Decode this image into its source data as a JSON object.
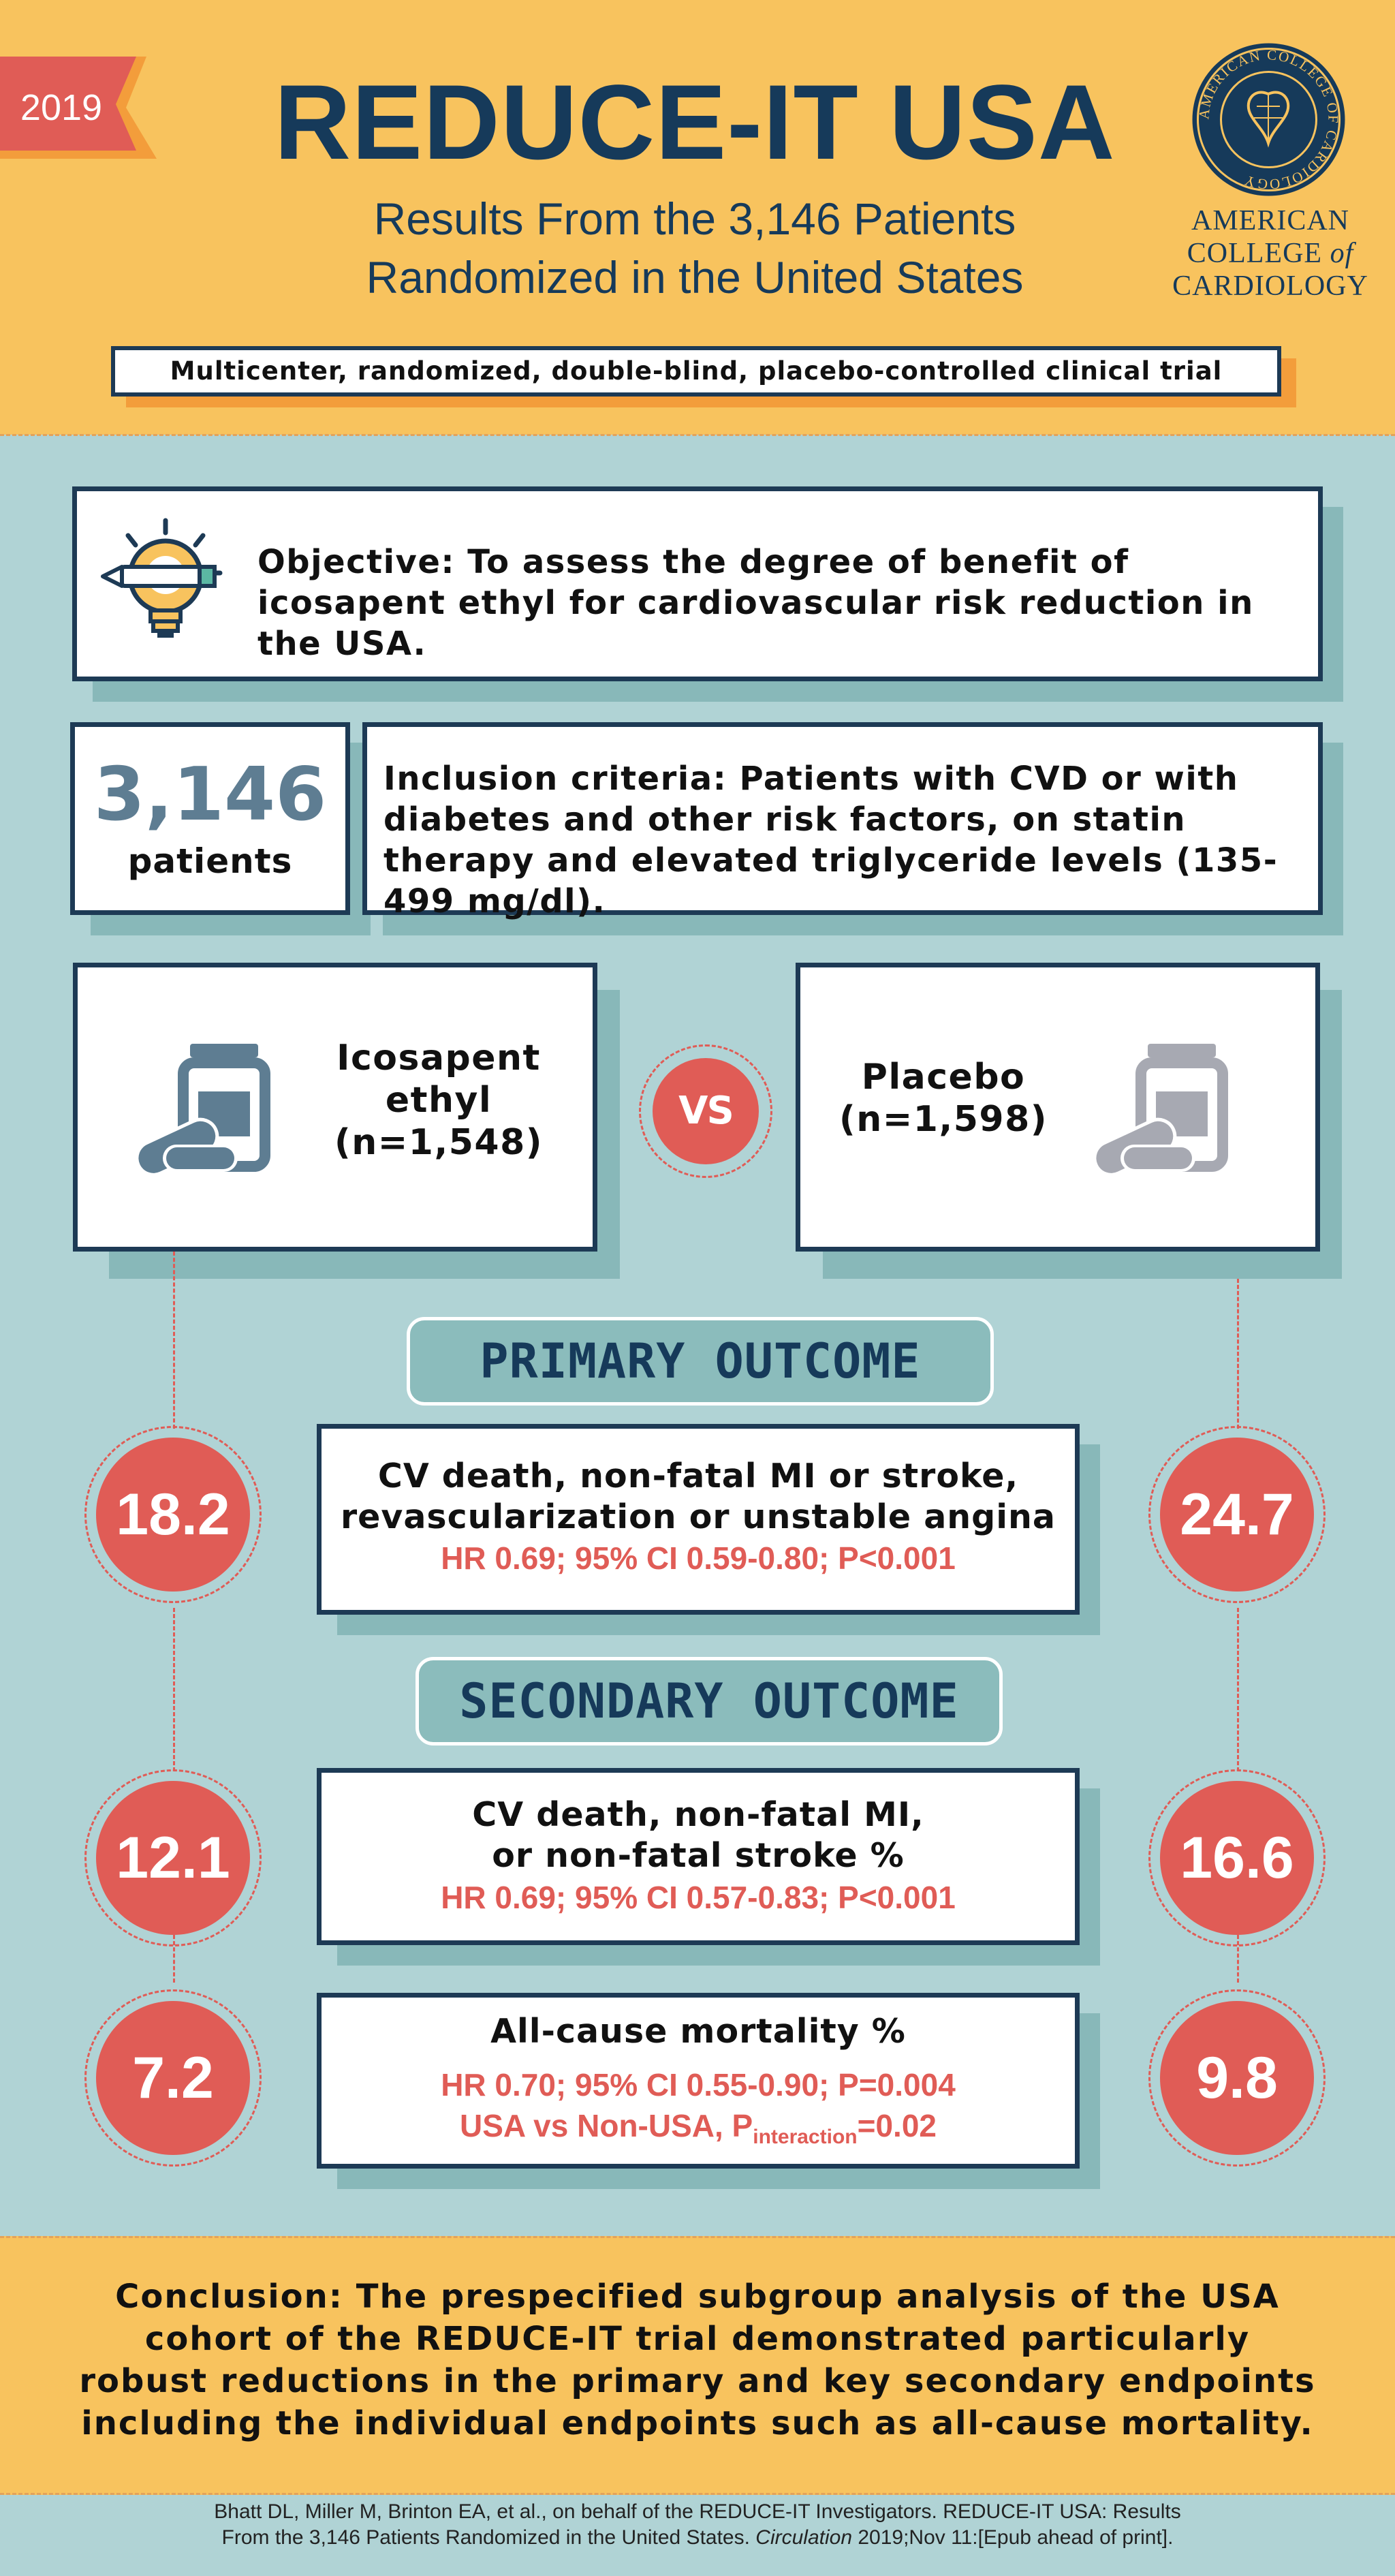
{
  "header": {
    "year": "2019",
    "title": "REDUCE-IT USA",
    "subtitle_line1": "Results From the 3,146 Patients",
    "subtitle_line2": "Randomized in the United States",
    "logo_ring_text": "AMERICAN COLLEGE OF CARDIOLOGY",
    "logo_line1": "AMERICAN",
    "logo_line2a": "COLLEGE ",
    "logo_line2b": "of",
    "logo_line3": "CARDIOLOGY",
    "trial_design": "Multicenter, randomized, double-blind, placebo-controlled clinical trial"
  },
  "objective": {
    "icon": "lightbulb-icon",
    "text": "Objective: To assess the degree of benefit of icosapent ethyl for cardiovascular risk reduction in the USA."
  },
  "patients": {
    "count": "3,146",
    "label": "patients"
  },
  "inclusion": {
    "text": "Inclusion criteria: Patients with CVD or with diabetes and other risk factors, on statin therapy and elevated triglyceride levels (135-499 mg/dl)."
  },
  "arms": {
    "treatment_line1": "Icosapent",
    "treatment_line2": "ethyl",
    "treatment_line3": "(n=1,548)",
    "vs": "VS",
    "placebo_line1": "Placebo",
    "placebo_line2": "(n=1,598)",
    "treatment_icon": "pill-bottle-icon",
    "placebo_icon": "pill-bottle-icon"
  },
  "primary": {
    "heading": "PRIMARY OUTCOME",
    "line1": "CV death, non-fatal MI or stroke,",
    "line2": "revascularization or unstable angina",
    "stats": "HR 0.69; 95% CI 0.59-0.80; P<0.001",
    "treatment_value": "18.2",
    "placebo_value": "24.7"
  },
  "secondary": {
    "heading": "SECONDARY OUTCOME",
    "line1": "CV death, non-fatal MI,",
    "line2": "or non-fatal stroke %",
    "stats": "HR 0.69; 95% CI 0.57-0.83; P<0.001",
    "treatment_value": "12.1",
    "placebo_value": "16.6"
  },
  "mortality": {
    "line1": "All-cause mortality %",
    "stats": "HR 0.70; 95% CI 0.55-0.90; P=0.004",
    "interaction_prefix": "USA vs Non-USA, P",
    "interaction_sub": "interaction",
    "interaction_suffix": "=0.02",
    "treatment_value": "7.2",
    "placebo_value": "9.8"
  },
  "conclusion": {
    "text": "Conclusion: The prespecified subgroup analysis of the USA cohort of the REDUCE-IT trial demonstrated particularly robust reductions in the primary and key secondary endpoints including the individual endpoints such as all-cause mortality."
  },
  "citation": {
    "line1": "Bhatt DL, Miller M, Brinton EA, et al., on behalf of the REDUCE-IT Investigators. REDUCE-IT USA: Results",
    "line2_prefix": "From the 3,146 Patients Randomized in the United States. ",
    "journal": "Circulation",
    "line2_suffix": " 2019;Nov 11:[Epub ahead of print]."
  },
  "colors": {
    "header_bg": "#f8c35e",
    "page_bg": "#b0d3d5",
    "navy": "#1d3a55",
    "accent_red": "#e05c56"
  }
}
